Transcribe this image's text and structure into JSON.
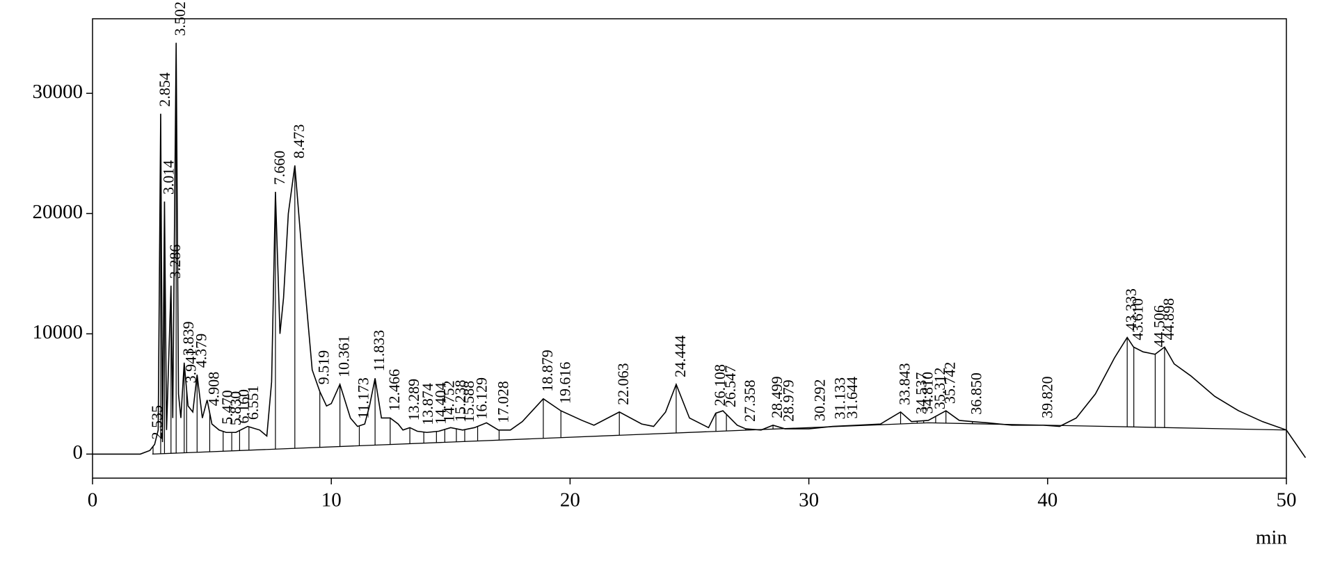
{
  "chart_data": {
    "type": "line",
    "x_unit_label": "min",
    "x": [
      0,
      2,
      2.4,
      2.6,
      2.75,
      2.854,
      2.93,
      3.014,
      3.1,
      3.286,
      3.36,
      3.502,
      3.6,
      3.7,
      3.839,
      4.0,
      4.2,
      4.379,
      4.6,
      4.8,
      5.0,
      5.3,
      5.6,
      6.0,
      6.5,
      7.0,
      7.3,
      7.5,
      7.66,
      7.85,
      8.0,
      8.2,
      8.473,
      8.8,
      9.2,
      9.519,
      9.8,
      10.0,
      10.361,
      10.8,
      11.1,
      11.4,
      11.6,
      11.833,
      12.1,
      12.466,
      12.8,
      13.0,
      13.289,
      13.6,
      14.0,
      14.5,
      15.0,
      15.5,
      16.0,
      16.5,
      17.0,
      17.5,
      18.0,
      18.879,
      19.616,
      20.5,
      21.0,
      22.063,
      23.0,
      23.5,
      24.0,
      24.444,
      25.0,
      25.8,
      26.1,
      26.4,
      27.0,
      27.358,
      28.0,
      28.499,
      29.0,
      30.0,
      31.0,
      32.0,
      33.0,
      33.843,
      34.3,
      35.0,
      35.742,
      36.3,
      36.85,
      37.5,
      38.5,
      39.82,
      40.5,
      41.2,
      42.0,
      42.8,
      43.333,
      43.6,
      44.0,
      44.5,
      44.898,
      45.3,
      46.0,
      47.0,
      48.0,
      49.0,
      50.0,
      50.8
    ],
    "values": [
      0,
      0,
      300,
      800,
      2000,
      28300,
      1000,
      21000,
      2000,
      14000,
      3000,
      34200,
      5000,
      3000,
      7600,
      4000,
      3500,
      6600,
      3000,
      4500,
      2500,
      2000,
      1800,
      1800,
      2300,
      2000,
      1500,
      6000,
      21800,
      10000,
      13000,
      20000,
      24000,
      16000,
      7000,
      5200,
      4000,
      4200,
      5800,
      3000,
      2300,
      2500,
      4000,
      6300,
      3000,
      3000,
      2500,
      2000,
      2200,
      1900,
      1800,
      1900,
      2200,
      2000,
      2200,
      2600,
      2000,
      2000,
      2700,
      4600,
      3600,
      2800,
      2400,
      3500,
      2500,
      2300,
      3500,
      5800,
      3000,
      2200,
      3400,
      3600,
      2400,
      2100,
      2000,
      2400,
      2100,
      2100,
      2300,
      2400,
      2500,
      3500,
      2700,
      2800,
      3600,
      2800,
      2700,
      2600,
      2400,
      2400,
      2300,
      3000,
      5000,
      8000,
      9700,
      8900,
      8500,
      8300,
      8900,
      7500,
      6500,
      4800,
      3600,
      2700,
      2000,
      -300
    ],
    "color": "#000000",
    "baseline": {
      "x": [
        2.5,
        35,
        50
      ],
      "values": [
        0,
        2600,
        2000
      ]
    },
    "peaks": [
      {
        "value": 2.535,
        "label": "2.535"
      },
      {
        "value": 2.854,
        "label": "2.854"
      },
      {
        "value": 3.014,
        "label": "3.014"
      },
      {
        "value": 3.286,
        "label": "3.286"
      },
      {
        "value": 3.502,
        "label": "3.502"
      },
      {
        "value": 3.839,
        "label": "3.839"
      },
      {
        "value": 3.941,
        "label": "3.941"
      },
      {
        "value": 4.379,
        "label": "4.379"
      },
      {
        "value": 4.908,
        "label": "4.908"
      },
      {
        "value": 5.47,
        "label": "5.470"
      },
      {
        "value": 5.83,
        "label": "5.830"
      },
      {
        "value": 6.16,
        "label": "6.160"
      },
      {
        "value": 6.551,
        "label": "6.551"
      },
      {
        "value": 7.66,
        "label": "7.660"
      },
      {
        "value": 8.473,
        "label": "8.473"
      },
      {
        "value": 9.519,
        "label": "9.519"
      },
      {
        "value": 10.361,
        "label": "10.361"
      },
      {
        "value": 11.173,
        "label": "11.173"
      },
      {
        "value": 11.833,
        "label": "11.833"
      },
      {
        "value": 12.466,
        "label": "12.466"
      },
      {
        "value": 13.289,
        "label": "13.289"
      },
      {
        "value": 13.874,
        "label": "13.874"
      },
      {
        "value": 14.404,
        "label": "14.404"
      },
      {
        "value": 14.752,
        "label": "14.752"
      },
      {
        "value": 15.238,
        "label": "15.238"
      },
      {
        "value": 15.588,
        "label": "15.588"
      },
      {
        "value": 16.129,
        "label": "16.129"
      },
      {
        "value": 17.028,
        "label": "17.028"
      },
      {
        "value": 18.879,
        "label": "18.879"
      },
      {
        "value": 19.616,
        "label": "19.616"
      },
      {
        "value": 22.063,
        "label": "22.063"
      },
      {
        "value": 24.444,
        "label": "24.444"
      },
      {
        "value": 26.108,
        "label": "26.108"
      },
      {
        "value": 26.547,
        "label": "26.547"
      },
      {
        "value": 27.358,
        "label": "27.358"
      },
      {
        "value": 28.499,
        "label": "28.499"
      },
      {
        "value": 28.979,
        "label": "28.979"
      },
      {
        "value": 30.292,
        "label": "30.292"
      },
      {
        "value": 31.133,
        "label": "31.133"
      },
      {
        "value": 31.644,
        "label": "31.644"
      },
      {
        "value": 33.843,
        "label": "33.843"
      },
      {
        "value": 34.537,
        "label": "34.537"
      },
      {
        "value": 34.81,
        "label": "34.810"
      },
      {
        "value": 35.312,
        "label": "35.312"
      },
      {
        "value": 35.742,
        "label": "35.742"
      },
      {
        "value": 36.85,
        "label": "36.850"
      },
      {
        "value": 39.82,
        "label": "39.820"
      },
      {
        "value": 43.333,
        "label": "43.333"
      },
      {
        "value": 43.61,
        "label": "43.610"
      },
      {
        "value": 44.506,
        "label": "44.506"
      },
      {
        "value": 44.898,
        "label": "44.898"
      }
    ],
    "xlim": [
      0,
      50
    ],
    "xticks": [
      0,
      10,
      20,
      30,
      40,
      50
    ],
    "ylim": [
      -2000,
      36200
    ],
    "yticks": [
      0,
      10000,
      20000,
      30000
    ]
  }
}
